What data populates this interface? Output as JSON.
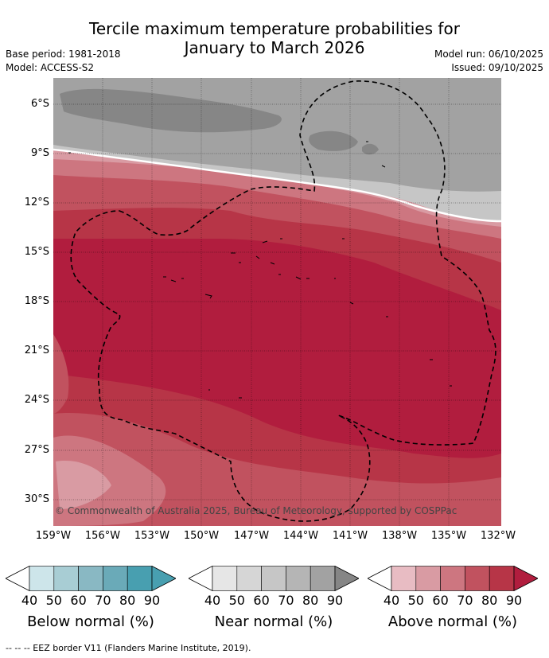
{
  "title_line1": "Tercile maximum temperature probabilities for",
  "title_line2": "January to March 2026",
  "base_period": "Base period: 1981-2018",
  "model": "Model: ACCESS-S2",
  "model_run": "Model run: 06/10/2025",
  "issued": "Issued: 09/10/2025",
  "copyright": "© Commonwealth of Australia 2025, Bureau of Meteorology, supported by COSPPac",
  "lat_ticks": [
    "6°S",
    "9°S",
    "12°S",
    "15°S",
    "18°S",
    "21°S",
    "24°S",
    "27°S",
    "30°S"
  ],
  "lon_ticks": [
    "159°W",
    "156°W",
    "153°W",
    "150°W",
    "147°W",
    "144°W",
    "141°W",
    "138°W",
    "135°W",
    "132°W"
  ],
  "colorbars": [
    {
      "label": "Below normal (%)",
      "ticks": [
        "40",
        "50",
        "60",
        "70",
        "80",
        "90"
      ],
      "colors": [
        "#ffffff",
        "#cde5ea",
        "#a8cdd4",
        "#89b8c3",
        "#6aaab8",
        "#489fb0"
      ]
    },
    {
      "label": "Near normal (%)",
      "ticks": [
        "40",
        "50",
        "60",
        "70",
        "80",
        "90"
      ],
      "colors": [
        "#ffffff",
        "#e6e6e6",
        "#d6d6d6",
        "#c6c6c6",
        "#b5b5b5",
        "#a2a2a2",
        "#868686"
      ]
    },
    {
      "label": "Above normal (%)",
      "ticks": [
        "40",
        "50",
        "60",
        "70",
        "80",
        "90"
      ],
      "colors": [
        "#ffffff",
        "#e8bcc3",
        "#d99ba3",
        "#cd7680",
        "#c1525f",
        "#b73547",
        "#b11d3e"
      ]
    }
  ],
  "footer": "-- -- -- EEZ border V11 (Flanders Marine Institute, 2019).",
  "map_colors": {
    "near_dark": "#868686",
    "near_mid": "#a2a2a2",
    "near_light": "#c6c6c6",
    "above_90": "#b11d3e",
    "above_80": "#b73547",
    "above_70": "#c1525f",
    "above_60": "#cd7680",
    "above_50": "#d99ba3",
    "above_40": "#e8bcc3"
  }
}
